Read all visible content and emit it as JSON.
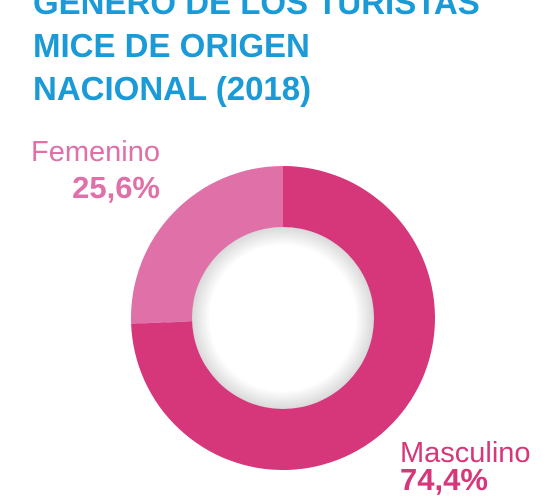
{
  "chart_data": {
    "type": "donut",
    "title": [
      "GÉNERO DE LOS TURISTAS",
      "MICE DE ORIGEN",
      "NACIONAL (2018)"
    ],
    "categories": [
      "Masculino",
      "Femenino"
    ],
    "values": [
      74.4,
      25.6
    ],
    "value_labels": [
      "74,4%",
      "25,6%"
    ],
    "colors": [
      "#d6367a",
      "#e070a8"
    ]
  }
}
